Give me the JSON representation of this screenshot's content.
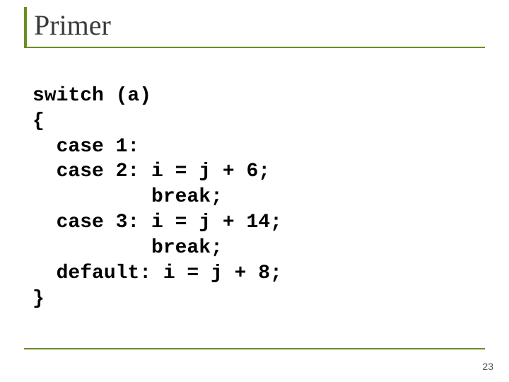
{
  "title": "Primer",
  "code_lines": [
    "switch (a)",
    "{",
    "  case 1:",
    "  case 2: i = j + 6;",
    "          break;",
    "  case 3: i = j + 14;",
    "          break;",
    "  default: i = j + 8;",
    "}"
  ],
  "page_number": "23",
  "accent_color": "#6b8e23",
  "title_color": "#3a3a3a",
  "code_color": "#000000",
  "background_color": "#ffffff",
  "title_fontsize": 40,
  "code_fontsize": 28
}
